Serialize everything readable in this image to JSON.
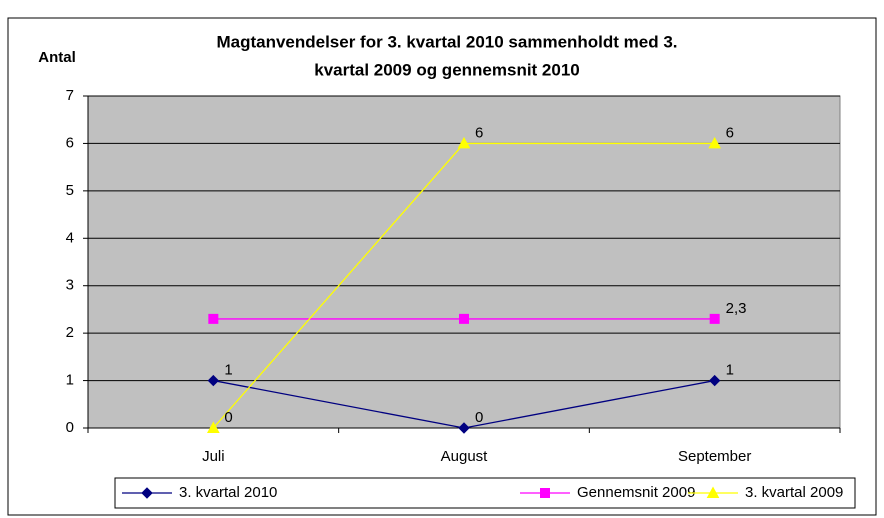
{
  "chart_data": {
    "type": "line",
    "title": [
      "Magtanvendelser for 3. kvartal 2010 sammenholdt med 3.",
      "kvartal 2009 og gennemsnit 2010"
    ],
    "y_label": "Antal",
    "categories": [
      "Juli",
      "August",
      "September"
    ],
    "series": [
      {
        "name": "3. kvartal 2010",
        "color": "#000080",
        "marker": "diamond",
        "values": [
          1,
          0,
          1
        ],
        "value_labels": [
          "1",
          "0",
          "1"
        ]
      },
      {
        "name": "Gennemsnit 2009",
        "color": "#ff00ff",
        "marker": "square",
        "values": [
          2.3,
          2.3,
          2.3
        ],
        "value_labels": [
          null,
          null,
          "2,3"
        ]
      },
      {
        "name": "3. kvartal 2009",
        "color": "#ffff00",
        "marker": "triangle",
        "values": [
          0,
          6,
          6
        ],
        "value_labels": [
          "0",
          "6",
          "6"
        ]
      }
    ],
    "ylim": [
      0,
      7
    ],
    "yticks": [
      0,
      1,
      2,
      3,
      4,
      5,
      6,
      7
    ],
    "grid": true,
    "legend": "bottom"
  }
}
